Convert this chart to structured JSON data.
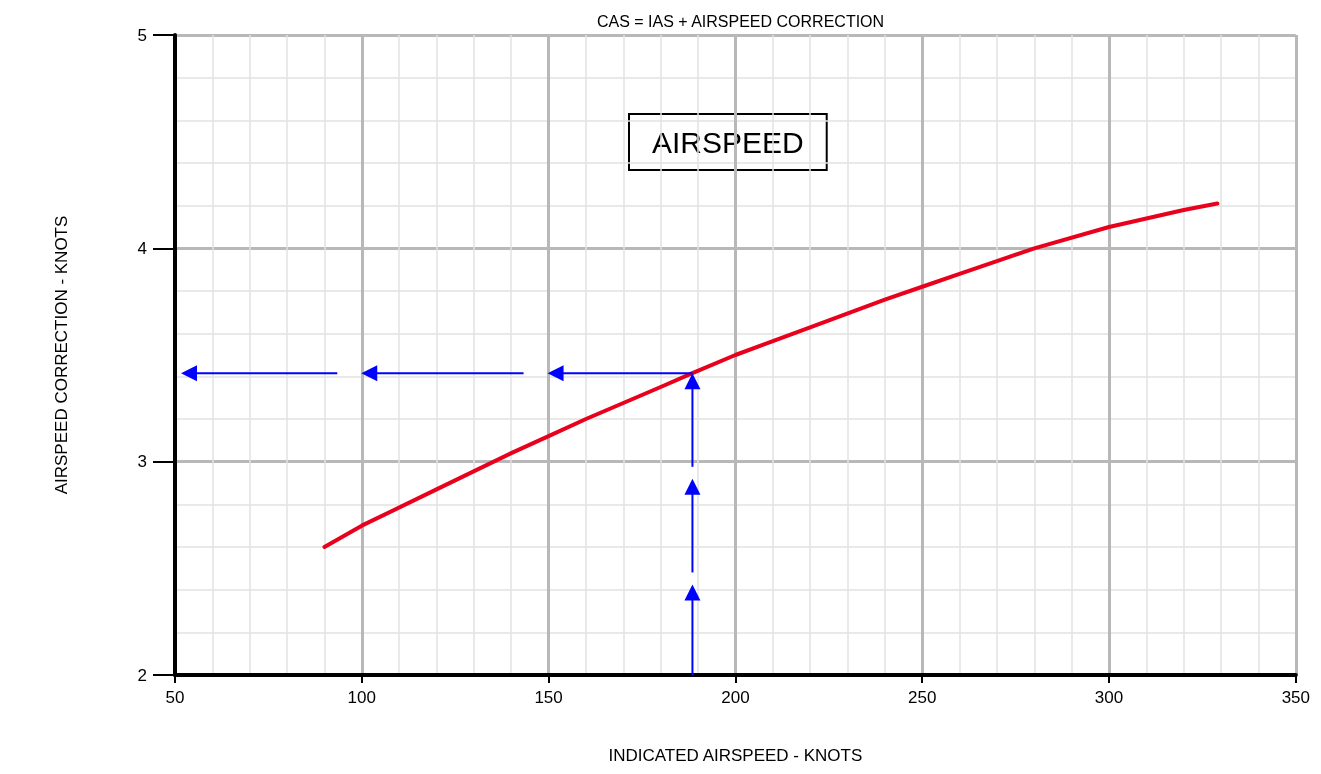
{
  "chart_data": {
    "type": "line",
    "title": "CAS = IAS + AIRSPEED CORRECTION",
    "xlabel": "INDICATED AIRSPEED - KNOTS",
    "ylabel": "AIRSPEED CORRECTION - KNOTS",
    "annotations": [
      "AIRSPEED"
    ],
    "series": [
      {
        "color": "#e8001c",
        "x": [
          90,
          100,
          120,
          140,
          150,
          160,
          180,
          188.5,
          200,
          220,
          240,
          250,
          260,
          280,
          300,
          320,
          329
        ],
        "values": [
          2.6,
          2.7,
          2.87,
          3.04,
          3.12,
          3.2,
          3.35,
          3.415,
          3.5,
          3.63,
          3.76,
          3.82,
          3.88,
          4.0,
          4.1,
          4.18,
          4.21
        ]
      }
    ],
    "xlim": [
      50,
      350
    ],
    "xticks": [
      50,
      100,
      150,
      200,
      250,
      300,
      350
    ],
    "ylim": [
      2,
      5
    ],
    "yticks": [
      2,
      3,
      4,
      5
    ],
    "grid": true,
    "marker": "none",
    "line_style": "solid"
  }
}
